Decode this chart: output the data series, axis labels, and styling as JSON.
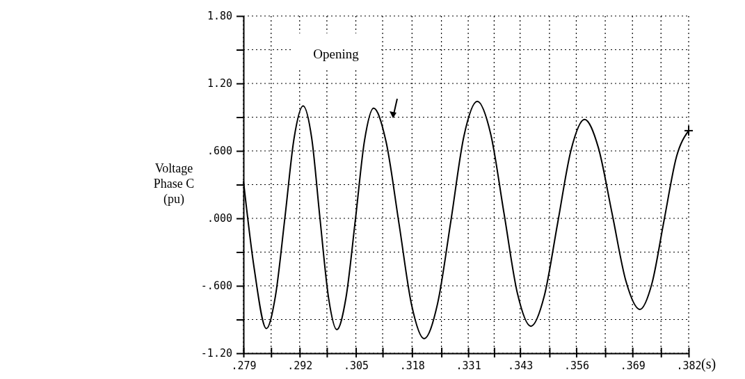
{
  "chart_data": {
    "type": "line",
    "ylabel": "Voltage\nPhase C\n(pu)",
    "xlabel": "(s)",
    "x": [
      0.279,
      0.2815,
      0.2843,
      0.2864,
      0.2886,
      0.2907,
      0.2928,
      0.2948,
      0.2967,
      0.2987,
      0.3006,
      0.3027,
      0.3049,
      0.307,
      0.3091,
      0.312,
      0.315,
      0.3179,
      0.3208,
      0.3239,
      0.327,
      0.33,
      0.3331,
      0.3362,
      0.3393,
      0.3424,
      0.3455,
      0.3486,
      0.3517,
      0.3548,
      0.3579,
      0.3611,
      0.3643,
      0.3675,
      0.3707,
      0.3735,
      0.3763,
      0.3792,
      0.382
    ],
    "series": [
      {
        "color": "#000000",
        "values": [
          0.33,
          -0.45,
          -0.98,
          -0.69,
          0.01,
          0.71,
          1.0,
          0.71,
          0.0,
          -0.71,
          -0.99,
          -0.71,
          -0.01,
          0.69,
          0.98,
          0.68,
          -0.05,
          -0.77,
          -1.07,
          -0.76,
          -0.02,
          0.73,
          1.04,
          0.75,
          0.04,
          -0.67,
          -0.96,
          -0.69,
          -0.04,
          0.61,
          0.88,
          0.63,
          0.04,
          -0.56,
          -0.81,
          -0.58,
          -0.02,
          0.55,
          0.78
        ]
      }
    ],
    "xlim": [
      0.279,
      0.382
    ],
    "xticks": [
      {
        "value": 0.279,
        "label": ".279"
      },
      {
        "value": 0.2854,
        "label": null
      },
      {
        "value": 0.292,
        "label": ".292"
      },
      {
        "value": 0.2983,
        "label": null
      },
      {
        "value": 0.305,
        "label": ".305"
      },
      {
        "value": 0.3112,
        "label": null
      },
      {
        "value": 0.318,
        "label": ".318"
      },
      {
        "value": 0.3248,
        "label": null
      },
      {
        "value": 0.331,
        "label": ".331"
      },
      {
        "value": 0.337,
        "label": null
      },
      {
        "value": 0.343,
        "label": ".343"
      },
      {
        "value": 0.3498,
        "label": null
      },
      {
        "value": 0.356,
        "label": ".356"
      },
      {
        "value": 0.3627,
        "label": null
      },
      {
        "value": 0.369,
        "label": ".369"
      },
      {
        "value": 0.3756,
        "label": null
      },
      {
        "value": 0.382,
        "label": ".382"
      }
    ],
    "ylim": [
      -1.2,
      1.8
    ],
    "yticks": [
      {
        "value": -1.2,
        "label": "-1.20"
      },
      {
        "value": -0.9,
        "label": null
      },
      {
        "value": -0.6,
        "label": "-.600"
      },
      {
        "value": -0.3,
        "label": null
      },
      {
        "value": 0,
        "label": ".000"
      },
      {
        "value": 0.3,
        "label": null
      },
      {
        "value": 0.6,
        "label": ".600"
      },
      {
        "value": 0.9,
        "label": null
      },
      {
        "value": 1.2,
        "label": "1.20"
      },
      {
        "value": 1.5,
        "label": null
      },
      {
        "value": 1.8,
        "label": "1.80"
      }
    ],
    "grid": true,
    "line_style": "solid",
    "annotations": [
      "Opening"
    ]
  }
}
